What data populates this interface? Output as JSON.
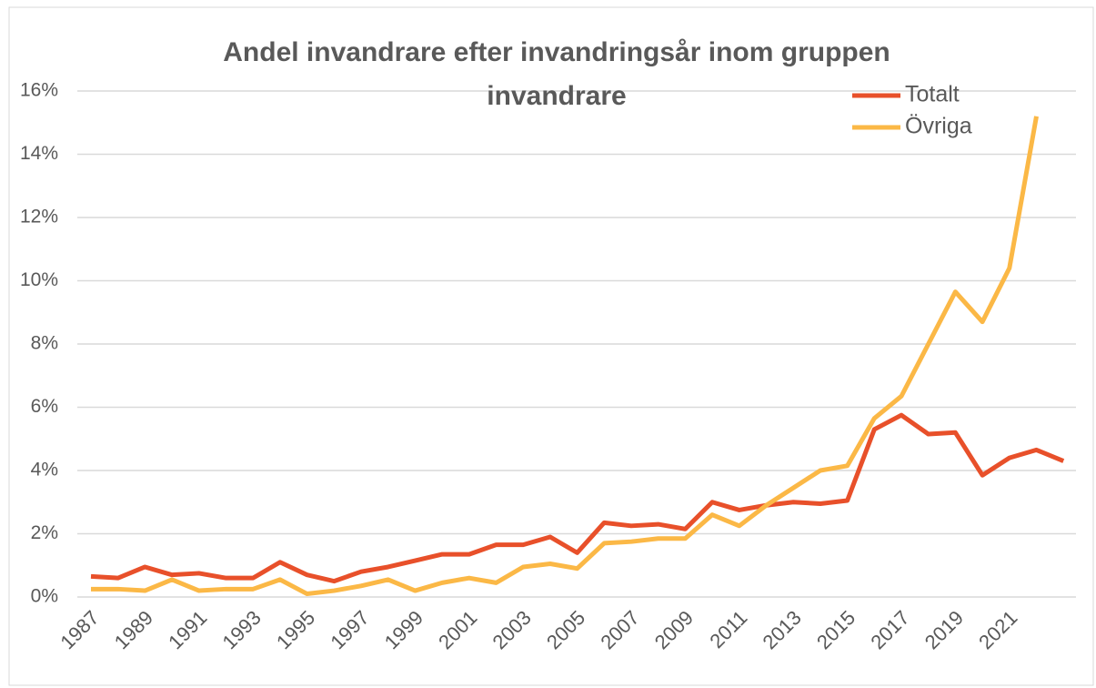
{
  "chart_data": {
    "type": "line",
    "title": "Andel invandrare efter invandringsår inom gruppen invandrare",
    "categories": [
      "1987",
      null,
      "1989",
      null,
      "1991",
      null,
      "1993",
      null,
      "1995",
      null,
      "1997",
      null,
      "1999",
      null,
      "2001",
      null,
      "2003",
      null,
      "2005",
      null,
      "2007",
      null,
      "2009",
      null,
      "2011",
      null,
      "2013",
      null,
      "2015",
      null,
      "2017",
      null,
      "2019",
      null,
      "2021",
      null,
      null
    ],
    "series": [
      {
        "name": "Totalt",
        "color": "#e8502a",
        "values": [
          0.65,
          0.6,
          0.95,
          0.7,
          0.75,
          0.6,
          0.6,
          1.1,
          0.7,
          0.5,
          0.8,
          0.95,
          1.15,
          1.35,
          1.35,
          1.65,
          1.65,
          1.9,
          1.4,
          2.35,
          2.25,
          2.3,
          2.15,
          3.0,
          2.75,
          2.9,
          3.0,
          2.95,
          3.05,
          5.3,
          5.75,
          5.15,
          5.2,
          3.85,
          4.4,
          4.65,
          4.3
        ]
      },
      {
        "name": "Övriga",
        "color": "#fbb846",
        "values": [
          0.25,
          0.25,
          0.2,
          0.55,
          0.2,
          0.25,
          0.25,
          0.55,
          0.1,
          0.2,
          0.35,
          0.55,
          0.2,
          0.45,
          0.6,
          0.45,
          0.95,
          1.05,
          0.9,
          1.7,
          1.75,
          1.85,
          1.85,
          2.6,
          2.25,
          2.9,
          3.45,
          4.0,
          4.15,
          5.65,
          6.35,
          8.0,
          9.65,
          8.7,
          10.4,
          15.2,
          null
        ]
      }
    ],
    "ylim": [
      0,
      16
    ],
    "yticks": [
      {
        "value": 0,
        "label": "0%"
      },
      {
        "value": 2,
        "label": "2%"
      },
      {
        "value": 4,
        "label": "4%"
      },
      {
        "value": 6,
        "label": "6%"
      },
      {
        "value": 8,
        "label": "8%"
      },
      {
        "value": 10,
        "label": "10%"
      },
      {
        "value": 12,
        "label": "12%"
      },
      {
        "value": 14,
        "label": "14%"
      },
      {
        "value": 16,
        "label": "16%"
      }
    ],
    "grid": true,
    "legend": "top-right"
  }
}
